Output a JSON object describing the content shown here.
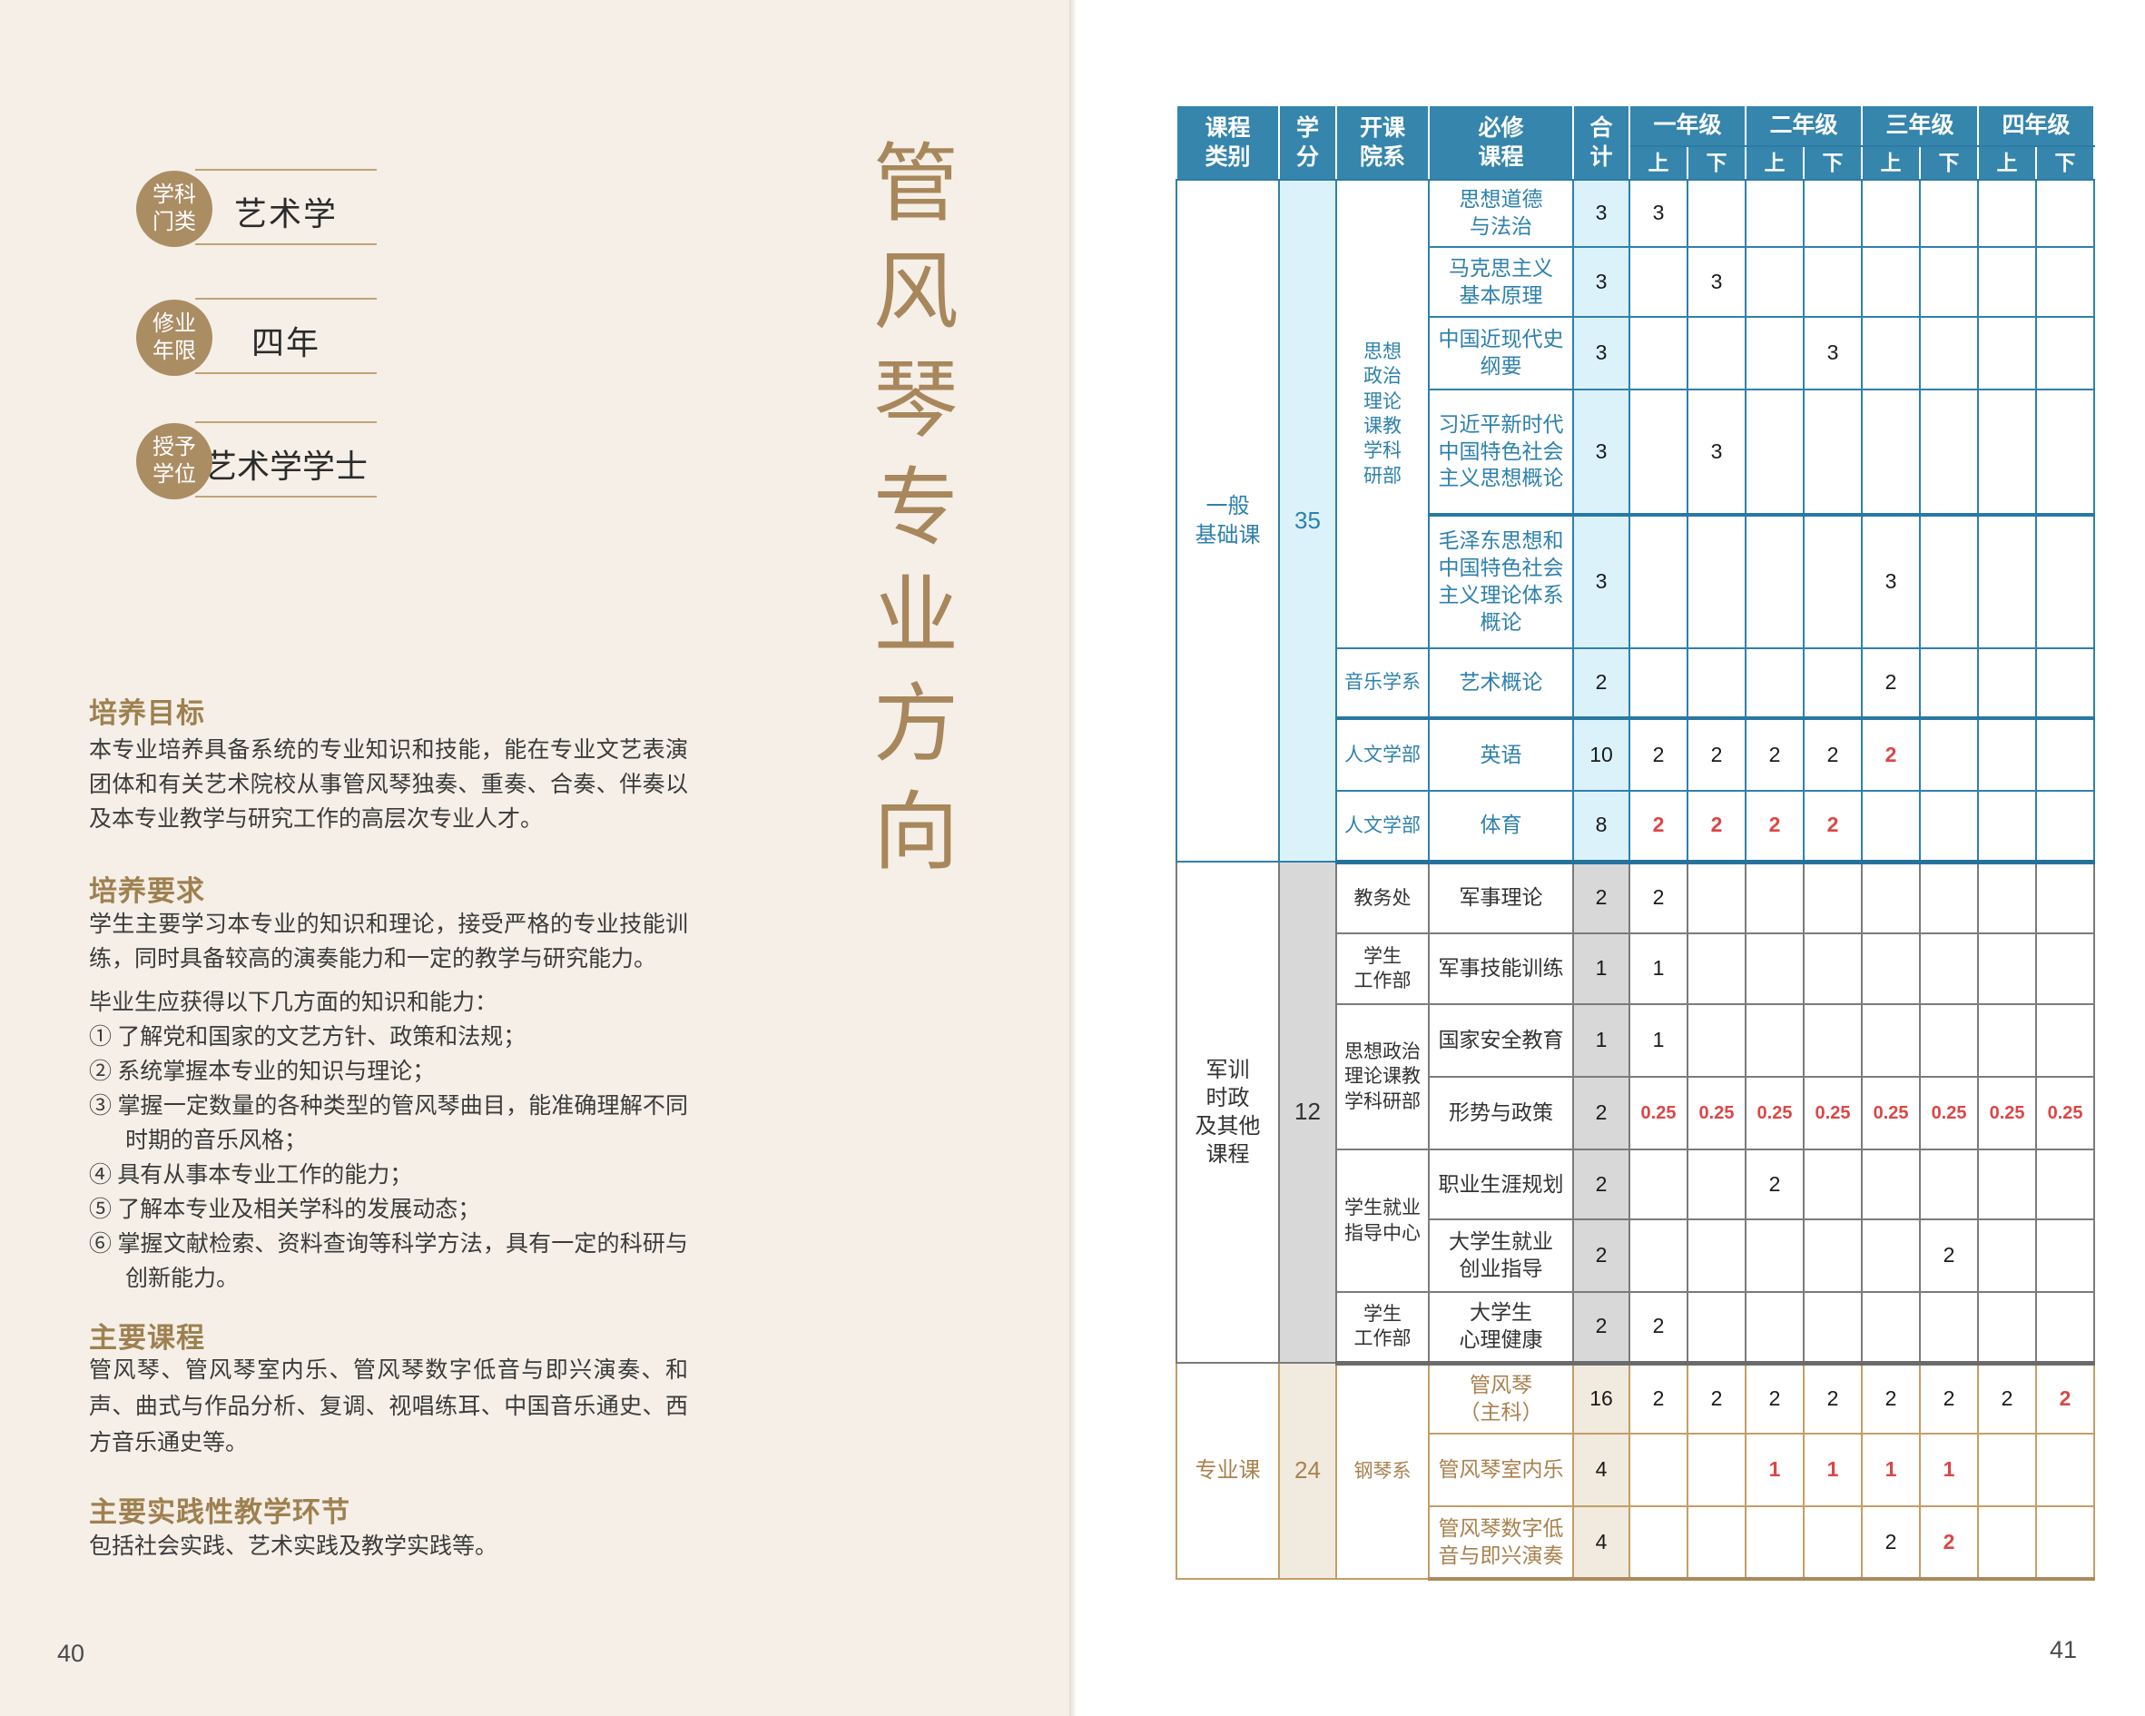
{
  "left_page": {
    "page_number": "40",
    "badges": [
      {
        "label": "学科\n门类",
        "value": "艺术学"
      },
      {
        "label": "修业\n年限",
        "value": "四年"
      },
      {
        "label": "授予\n学位",
        "value": "艺术学学士"
      }
    ],
    "sections": [
      {
        "heading": "培养目标",
        "paragraphs": [
          "本专业培养具备系统的专业知识和技能，能在专业文艺表演团体和有关艺术院校从事管风琴独奏、重奏、合奏、伴奏以及本专业教学与研究工作的高层次专业人才。"
        ]
      },
      {
        "heading": "培养要求",
        "paragraphs": [
          "学生主要学习本专业的知识和理论，接受严格的专业技能训练，同时具备较高的演奏能力和一定的教学与研究能力。",
          "毕业生应获得以下几方面的知识和能力："
        ],
        "list": [
          "① 了解党和国家的文艺方针、政策和法规；",
          "② 系统掌握本专业的知识与理论；",
          "③ 掌握一定数量的各种类型的管风琴曲目，能准确理解不同时期的音乐风格；",
          "④ 具有从事本专业工作的能力；",
          "⑤ 了解本专业及相关学科的发展动态；",
          "⑥ 掌握文献检索、资料查询等科学方法，具有一定的科研与创新能力。"
        ]
      },
      {
        "heading": "主要课程",
        "paragraphs": [
          "管风琴、管风琴室内乐、管风琴数字低音与即兴演奏、和声、曲式与作品分析、复调、视唱练耳、中国音乐通史、西方音乐通史等。"
        ]
      },
      {
        "heading": "主要实践性教学环节",
        "paragraphs": [
          "包括社会实践、艺术实践及教学实践等。"
        ]
      }
    ]
  },
  "vertical_title": "管风琴专业方向",
  "right_page": {
    "page_number": "41",
    "table": {
      "header": {
        "col1": "课程\n类别",
        "col2": "学\n分",
        "col3": "开课\n院系",
        "col4": "必修\n课程",
        "col5": "合\n计",
        "grades": [
          "一年级",
          "二年级",
          "三年级",
          "四年级"
        ],
        "semester_labels": [
          "上",
          "下"
        ]
      },
      "sections": [
        {
          "category": "一般\n基础课",
          "credits": "35",
          "theme": "blue",
          "rows": [
            {
              "dept": "思想\n政治\n理论\n课教\n学科\n研部",
              "dept_span": 5,
              "course": "思想道德\n与法治",
              "total": "3",
              "sem": [
                "3",
                "",
                "",
                "",
                "",
                "",
                "",
                ""
              ]
            },
            {
              "course": "马克思主义\n基本原理",
              "total": "3",
              "sem": [
                "",
                "3",
                "",
                "",
                "",
                "",
                "",
                ""
              ]
            },
            {
              "course": "中国近现代史\n纲要",
              "total": "3",
              "sem": [
                "",
                "",
                "",
                "3",
                "",
                "",
                "",
                ""
              ]
            },
            {
              "course": "习近平新时代\n中国特色社会\n主义思想概论",
              "total": "3",
              "sem": [
                "",
                "3",
                "",
                "",
                "",
                "",
                "",
                ""
              ]
            },
            {
              "course": "毛泽东思想和\n中国特色社会\n主义理论体系\n概论",
              "total": "3",
              "thick_top": true,
              "sem": [
                "",
                "",
                "",
                "",
                "3",
                "",
                "",
                ""
              ]
            },
            {
              "dept": "音乐学系",
              "dept_span": 1,
              "course": "艺术概论",
              "total": "2",
              "sem": [
                "",
                "",
                "",
                "",
                "2",
                "",
                "",
                ""
              ]
            },
            {
              "dept": "人文学部",
              "dept_span": 1,
              "course": "英语",
              "total": "10",
              "thick_top": true,
              "sem": [
                "2",
                "2",
                "2",
                "2",
                {
                  "v": "2",
                  "red": true
                },
                "",
                "",
                ""
              ]
            },
            {
              "dept": "人文学部",
              "dept_span": 1,
              "course": "体育",
              "total": "8",
              "sem": [
                {
                  "v": "2",
                  "red": true
                },
                {
                  "v": "2",
                  "red": true
                },
                {
                  "v": "2",
                  "red": true
                },
                {
                  "v": "2",
                  "red": true
                },
                "",
                "",
                "",
                ""
              ]
            }
          ]
        },
        {
          "category": "军训\n时政\n及其他\n课程",
          "credits": "12",
          "theme": "grey",
          "rows": [
            {
              "dept": "教务处",
              "dept_span": 1,
              "course": "军事理论",
              "total": "2",
              "sem": [
                "2",
                "",
                "",
                "",
                "",
                "",
                "",
                ""
              ]
            },
            {
              "dept": "学生\n工作部",
              "dept_span": 1,
              "course": "军事技能训练",
              "total": "1",
              "sem": [
                "1",
                "",
                "",
                "",
                "",
                "",
                "",
                ""
              ]
            },
            {
              "dept": "思想政治\n理论课教\n学科研部",
              "dept_span": 2,
              "course": "国家安全教育",
              "total": "1",
              "sem": [
                "1",
                "",
                "",
                "",
                "",
                "",
                "",
                ""
              ]
            },
            {
              "course": "形势与政策",
              "total": "2",
              "sem": [
                {
                  "v": "0.25",
                  "red": true
                },
                {
                  "v": "0.25",
                  "red": true
                },
                {
                  "v": "0.25",
                  "red": true
                },
                {
                  "v": "0.25",
                  "red": true
                },
                {
                  "v": "0.25",
                  "red": true
                },
                {
                  "v": "0.25",
                  "red": true
                },
                {
                  "v": "0.25",
                  "red": true
                },
                {
                  "v": "0.25",
                  "red": true
                }
              ]
            },
            {
              "dept": "学生就业\n指导中心",
              "dept_span": 2,
              "course": "职业生涯规划",
              "total": "2",
              "sem": [
                "",
                "",
                "2",
                "",
                "",
                "",
                "",
                ""
              ]
            },
            {
              "course": "大学生就业\n创业指导",
              "total": "2",
              "sem": [
                "",
                "",
                "",
                "",
                "",
                "2",
                "",
                ""
              ]
            },
            {
              "dept": "学生\n工作部",
              "dept_span": 1,
              "course": "大学生\n心理健康",
              "total": "2",
              "sem": [
                "2",
                "",
                "",
                "",
                "",
                "",
                "",
                ""
              ]
            }
          ]
        },
        {
          "category": "专业课",
          "credits": "24",
          "theme": "tan",
          "rows": [
            {
              "dept": "钢琴系",
              "dept_span": 3,
              "course": "管风琴\n（主科）",
              "total": "16",
              "sem": [
                "2",
                "2",
                "2",
                "2",
                "2",
                "2",
                "2",
                {
                  "v": "2",
                  "red": true
                }
              ]
            },
            {
              "course": "管风琴室内乐",
              "total": "4",
              "sem": [
                "",
                "",
                {
                  "v": "1",
                  "red": true
                },
                {
                  "v": "1",
                  "red": true
                },
                {
                  "v": "1",
                  "red": true
                },
                {
                  "v": "1",
                  "red": true
                },
                "",
                ""
              ]
            },
            {
              "course": "管风琴数字低\n音与即兴演奏",
              "total": "4",
              "sem": [
                "",
                "",
                "",
                "",
                "2",
                {
                  "v": "2",
                  "red": true
                },
                "",
                ""
              ]
            }
          ]
        }
      ]
    }
  },
  "colors": {
    "left_page_bg": "#f5efe7",
    "badge_tan": "#ab8d64",
    "heading_brown": "#9e8050",
    "vertical_title_brown": "#a8875c",
    "table_header_blue": "#3585ad",
    "section_blue": "#2e81ab",
    "section_grey": "#7b7b7b",
    "section_tan": "#c49e66",
    "section_tan_text": "#a9814e",
    "highlight_red": "#dc4646",
    "shade_blue": "#dcf2fb",
    "shade_grey": "#d8d8d8",
    "shade_tan": "#f1eadf"
  }
}
